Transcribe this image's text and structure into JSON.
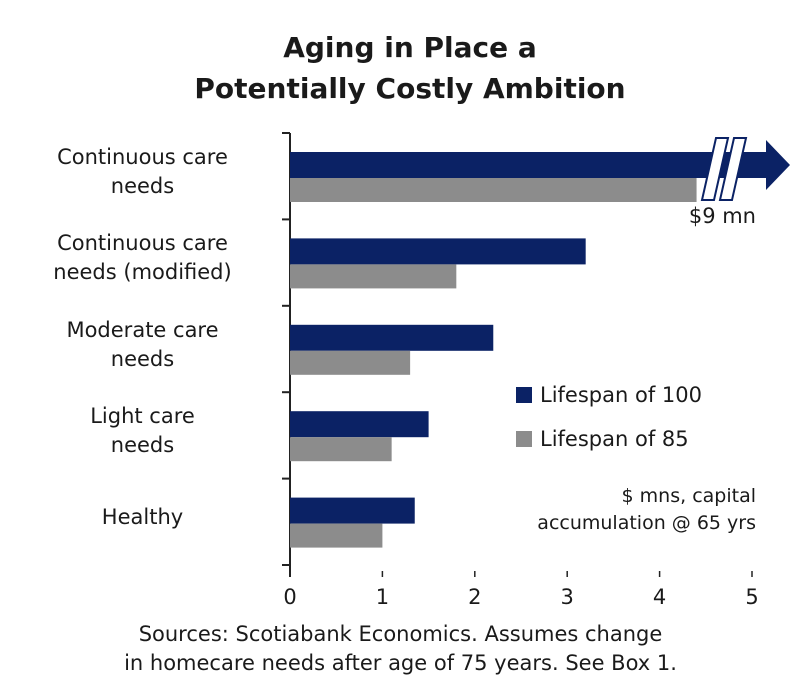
{
  "chart_data": {
    "type": "hbar",
    "title": "Aging in Place a\nPotentially Costly Ambition",
    "categories": [
      "Continuous care\nneeds",
      "Continuous care\nneeds (modified)",
      "Moderate care\nneeds",
      "Light care\nneeds",
      "Healthy"
    ],
    "series": [
      {
        "name": "Lifespan of 100",
        "color": "#0b2265",
        "values": [
          9,
          3.2,
          2.2,
          1.5,
          1.35
        ],
        "value_labels": [
          "$9 mn",
          null,
          null,
          null,
          null
        ]
      },
      {
        "name": "Lifespan of 85",
        "color": "#8c8c8c",
        "values": [
          4.4,
          1.8,
          1.3,
          1.1,
          1.0
        ]
      }
    ],
    "xlim": [
      0,
      5
    ],
    "xticks": [
      0,
      1,
      2,
      3,
      4,
      5
    ],
    "grid": false,
    "legend": "right",
    "annotation": "$ mns, capital\naccumulation @ 65 yrs",
    "source": "Sources: Scotiabank Economics. Assumes change\nin homecare needs after age of 75 years. See Box 1."
  }
}
